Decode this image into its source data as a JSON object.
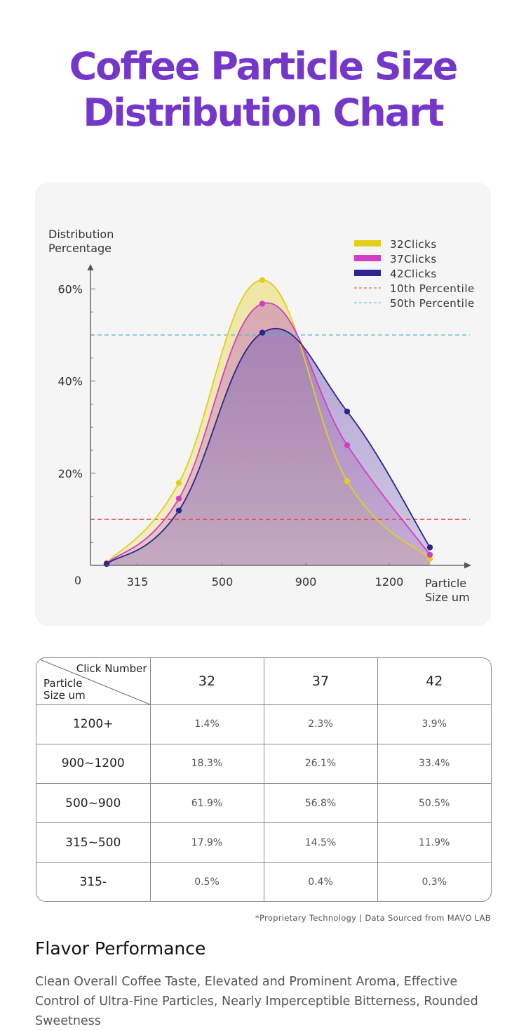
{
  "title_line1": "Coffee Particle Size",
  "title_line2": "Distribution Chart",
  "chart_data": {
    "type": "area",
    "ylabel_line1": "Distribution",
    "ylabel_line2": "Percentage",
    "xlabel_line1": "Particle",
    "xlabel_line2": "Size um",
    "origin_label": "0",
    "x_ticks": [
      "315",
      "500",
      "900",
      "1200"
    ],
    "y_ticks": [
      "20%",
      "40%",
      "60%"
    ],
    "ylim": [
      0,
      70
    ],
    "series": [
      {
        "name": "32Clicks",
        "color": "#e2cf1d",
        "values": [
          0.5,
          17.9,
          61.9,
          18.3,
          1.4
        ]
      },
      {
        "name": "37Clicks",
        "color": "#d23ec6",
        "values": [
          0.4,
          14.5,
          56.8,
          26.1,
          2.3
        ]
      },
      {
        "name": "42Clicks",
        "color": "#2e2491",
        "values": [
          0.3,
          11.9,
          50.5,
          33.4,
          3.9
        ]
      }
    ],
    "reference_lines": [
      {
        "name": "10th Percentile",
        "value": 10,
        "color": "#e8404a"
      },
      {
        "name": "50th Percentile",
        "value": 50,
        "color": "#5fb2cf"
      }
    ],
    "legend_position": "top-right",
    "grid": false
  },
  "table": {
    "corner_top": "Click Number",
    "corner_bottom_line1": "Particle",
    "corner_bottom_line2": "Size um",
    "columns": [
      "32",
      "37",
      "42"
    ],
    "rows": [
      {
        "label": "1200+",
        "values": [
          "1.4%",
          "2.3%",
          "3.9%"
        ]
      },
      {
        "label": "900~1200",
        "values": [
          "18.3%",
          "26.1%",
          "33.4%"
        ]
      },
      {
        "label": "500~900",
        "values": [
          "61.9%",
          "56.8%",
          "50.5%"
        ]
      },
      {
        "label": "315~500",
        "values": [
          "17.9%",
          "14.5%",
          "11.9%"
        ]
      },
      {
        "label": "315-",
        "values": [
          "0.5%",
          "0.4%",
          "0.3%"
        ]
      }
    ]
  },
  "note": "*Proprietary Technology | Data Sourced from MAVO LAB",
  "flavor": {
    "title": "Flavor Performance",
    "text": "Clean Overall Coffee Taste, Elevated and Prominent Aroma, Effective Control of Ultra-Fine Particles, Nearly Imperceptible Bitterness, Rounded Sweetness"
  }
}
